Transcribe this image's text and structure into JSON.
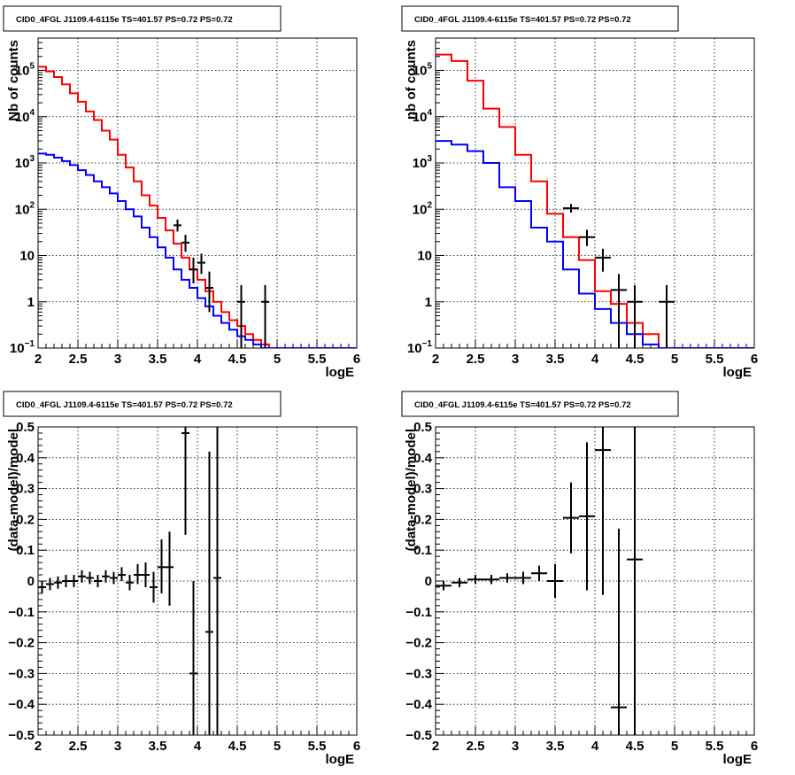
{
  "chart_data": [
    {
      "type": "line",
      "title": "CID0_4FGL J1109.4-6115e TS=401.57 PS=0.72 PS=0.72",
      "xlabel": "logE",
      "ylabel": "Nb of counts",
      "xlim": [
        2,
        6
      ],
      "ylim": [
        0.1,
        500000
      ],
      "yscale": "log",
      "grid": true,
      "x_ticks": [
        "2",
        "2.5",
        "3",
        "3.5",
        "4",
        "4.5",
        "5",
        "5.5",
        "6"
      ],
      "y_ticks": [
        {
          "base": "10",
          "exp": "−1"
        },
        {
          "base": "1",
          "exp": ""
        },
        {
          "base": "10",
          "exp": ""
        },
        {
          "base": "10",
          "exp": "2"
        },
        {
          "base": "10",
          "exp": "3"
        },
        {
          "base": "10",
          "exp": "4"
        },
        {
          "base": "10",
          "exp": "5"
        }
      ],
      "bin_edges": [
        2.0,
        2.1,
        2.2,
        2.3,
        2.4,
        2.5,
        2.6,
        2.7,
        2.8,
        2.9,
        3.0,
        3.1,
        3.2,
        3.3,
        3.4,
        3.5,
        3.6,
        3.7,
        3.8,
        3.9,
        4.0,
        4.1,
        4.2,
        4.3,
        4.4,
        4.5,
        4.6,
        4.7,
        4.8,
        4.9,
        5.0,
        5.1,
        5.2,
        5.3,
        5.4,
        5.5,
        5.6,
        5.7,
        5.8,
        5.9,
        6.0
      ],
      "series": [
        {
          "color": "#ff0000",
          "style": "step",
          "values": [
            120000,
            95000,
            72000,
            50000,
            32000,
            21000,
            13000,
            8500,
            5000,
            3200,
            1500,
            800,
            400,
            200,
            120,
            65,
            35,
            18,
            9,
            5,
            3,
            1.7,
            1.0,
            0.6,
            0.4,
            0.3,
            0.2,
            0.15,
            0.12,
            0.1,
            0.1,
            0.1,
            0.1,
            0.1,
            0.1,
            0.1,
            0.1,
            0.1,
            0.1,
            0.1
          ]
        },
        {
          "color": "#0000ff",
          "style": "step",
          "values": [
            1600,
            1500,
            1300,
            1100,
            900,
            700,
            550,
            400,
            300,
            220,
            150,
            100,
            70,
            40,
            25,
            15,
            9,
            5,
            3,
            2,
            1.2,
            0.8,
            0.5,
            0.35,
            0.25,
            0.18,
            0.15,
            0.12,
            0.1,
            0.1,
            0.1,
            0.1,
            0.1,
            0.1,
            0.1,
            0.1,
            0.1,
            0.1,
            0.1,
            0.1
          ]
        },
        {
          "color": "#000000",
          "style": "errorbar",
          "points": [
            {
              "x": 3.75,
              "xerr": 0.05,
              "y": 45,
              "ylo": 33,
              "yhi": 60
            },
            {
              "x": 3.85,
              "xerr": 0.05,
              "y": 19,
              "ylo": 12,
              "yhi": 28
            },
            {
              "x": 3.95,
              "xerr": 0.05,
              "y": 5,
              "ylo": 2.5,
              "yhi": 9
            },
            {
              "x": 4.05,
              "xerr": 0.05,
              "y": 7,
              "ylo": 4,
              "yhi": 11
            },
            {
              "x": 4.15,
              "xerr": 0.05,
              "y": 2,
              "ylo": 0.6,
              "yhi": 4.5
            },
            {
              "x": 4.55,
              "xerr": 0.05,
              "y": 1,
              "ylo": 0.1,
              "yhi": 2.3
            },
            {
              "x": 4.85,
              "xerr": 0.05,
              "y": 1,
              "ylo": 0.1,
              "yhi": 2.3
            }
          ]
        }
      ]
    },
    {
      "type": "line",
      "title": "CID0_4FGL J1109.4-6115e TS=401.57 PS=0.72 PS=0.72",
      "xlabel": "logE",
      "ylabel": "nb of counts",
      "xlim": [
        2,
        6
      ],
      "ylim": [
        0.1,
        500000
      ],
      "yscale": "log",
      "grid": true,
      "x_ticks": [
        "2",
        "2.5",
        "3",
        "3.5",
        "4",
        "4.5",
        "5",
        "5.5",
        "6"
      ],
      "y_ticks": [
        {
          "base": "10",
          "exp": "−1"
        },
        {
          "base": "1",
          "exp": ""
        },
        {
          "base": "10",
          "exp": ""
        },
        {
          "base": "10",
          "exp": "2"
        },
        {
          "base": "10",
          "exp": "3"
        },
        {
          "base": "10",
          "exp": "4"
        },
        {
          "base": "10",
          "exp": "5"
        }
      ],
      "bin_edges": [
        2.0,
        2.2,
        2.4,
        2.6,
        2.8,
        3.0,
        3.2,
        3.4,
        3.6,
        3.8,
        4.0,
        4.2,
        4.4,
        4.6,
        4.8,
        5.0,
        5.2,
        5.4,
        5.6,
        5.8,
        6.0
      ],
      "series": [
        {
          "color": "#ff0000",
          "style": "step",
          "values": [
            220000,
            160000,
            60000,
            15000,
            6000,
            1500,
            400,
            80,
            25,
            8,
            1.7,
            0.9,
            0.35,
            0.2,
            0.1,
            0.1,
            0.1,
            0.1,
            0.1,
            0.1
          ]
        },
        {
          "color": "#0000ff",
          "style": "step",
          "values": [
            3000,
            2500,
            1800,
            1000,
            300,
            150,
            40,
            20,
            5,
            1.5,
            0.7,
            0.35,
            0.2,
            0.12,
            0.1,
            0.1,
            0.1,
            0.1,
            0.1,
            0.1
          ]
        },
        {
          "color": "#000000",
          "style": "errorbar",
          "points": [
            {
              "x": 3.7,
              "xerr": 0.1,
              "y": 105,
              "ylo": 85,
              "yhi": 130
            },
            {
              "x": 3.9,
              "xerr": 0.1,
              "y": 25,
              "ylo": 16,
              "yhi": 36
            },
            {
              "x": 4.1,
              "xerr": 0.1,
              "y": 9,
              "ylo": 4.5,
              "yhi": 14
            },
            {
              "x": 4.3,
              "xerr": 0.1,
              "y": 1.8,
              "ylo": 0.1,
              "yhi": 4
            },
            {
              "x": 4.5,
              "xerr": 0.1,
              "y": 1,
              "ylo": 0.1,
              "yhi": 2.3
            },
            {
              "x": 4.9,
              "xerr": 0.1,
              "y": 1,
              "ylo": 0.1,
              "yhi": 2.3
            }
          ]
        }
      ]
    },
    {
      "type": "scatter",
      "title": "CID0_4FGL J1109.4-6115e TS=401.57 PS=0.72 PS=0.72",
      "xlabel": "logE",
      "ylabel": "(data-model)/model",
      "xlim": [
        2,
        6
      ],
      "ylim": [
        -0.5,
        0.5
      ],
      "grid": true,
      "x_ticks": [
        "2",
        "2.5",
        "3",
        "3.5",
        "4",
        "4.5",
        "5",
        "5.5",
        "6"
      ],
      "y_ticks": [
        "−0.5",
        "−0.4",
        "−0.3",
        "−0.2",
        "−0.1",
        "0",
        "0.1",
        "0.2",
        "0.3",
        "0.4",
        "0.5"
      ],
      "series": [
        {
          "color": "#000000",
          "style": "errorbar",
          "points": [
            {
              "x": 2.05,
              "xerr": 0.05,
              "y": -0.02,
              "ylo": -0.04,
              "yhi": 0.0
            },
            {
              "x": 2.15,
              "xerr": 0.05,
              "y": -0.01,
              "ylo": -0.03,
              "yhi": 0.01
            },
            {
              "x": 2.25,
              "xerr": 0.05,
              "y": -0.005,
              "ylo": -0.025,
              "yhi": 0.015
            },
            {
              "x": 2.35,
              "xerr": 0.05,
              "y": 0.0,
              "ylo": -0.02,
              "yhi": 0.02
            },
            {
              "x": 2.45,
              "xerr": 0.05,
              "y": 0.0,
              "ylo": -0.02,
              "yhi": 0.02
            },
            {
              "x": 2.55,
              "xerr": 0.05,
              "y": 0.015,
              "ylo": -0.005,
              "yhi": 0.035
            },
            {
              "x": 2.65,
              "xerr": 0.05,
              "y": 0.01,
              "ylo": -0.01,
              "yhi": 0.03
            },
            {
              "x": 2.75,
              "xerr": 0.05,
              "y": 0.0,
              "ylo": -0.02,
              "yhi": 0.02
            },
            {
              "x": 2.85,
              "xerr": 0.05,
              "y": 0.015,
              "ylo": -0.005,
              "yhi": 0.035
            },
            {
              "x": 2.95,
              "xerr": 0.05,
              "y": 0.01,
              "ylo": -0.01,
              "yhi": 0.03
            },
            {
              "x": 3.05,
              "xerr": 0.05,
              "y": 0.02,
              "ylo": 0.0,
              "yhi": 0.045
            },
            {
              "x": 3.15,
              "xerr": 0.05,
              "y": -0.005,
              "ylo": -0.03,
              "yhi": 0.02
            },
            {
              "x": 3.25,
              "xerr": 0.05,
              "y": 0.02,
              "ylo": -0.01,
              "yhi": 0.055
            },
            {
              "x": 3.35,
              "xerr": 0.05,
              "y": 0.02,
              "ylo": -0.02,
              "yhi": 0.06
            },
            {
              "x": 3.45,
              "xerr": 0.05,
              "y": -0.02,
              "ylo": -0.07,
              "yhi": 0.03
            },
            {
              "x": 3.55,
              "xerr": 0.05,
              "y": 0.045,
              "ylo": -0.04,
              "yhi": 0.135
            },
            {
              "x": 3.65,
              "xerr": 0.05,
              "y": 0.045,
              "ylo": -0.08,
              "yhi": 0.16
            },
            {
              "x": 3.85,
              "xerr": 0.05,
              "y": 0.48,
              "ylo": 0.15,
              "yhi": 0.5
            },
            {
              "x": 3.95,
              "xerr": 0.05,
              "y": -0.3,
              "ylo": -0.5,
              "yhi": 0.0
            },
            {
              "x": 4.15,
              "xerr": 0.05,
              "y": -0.165,
              "ylo": -0.5,
              "yhi": 0.42
            },
            {
              "x": 4.25,
              "xerr": 0.05,
              "y": 0.01,
              "ylo": -0.5,
              "yhi": 0.5
            }
          ]
        }
      ]
    },
    {
      "type": "scatter",
      "title": "CID0_4FGL J1109.4-6115e TS=401.57 PS=0.72 PS=0.72",
      "xlabel": "logE",
      "ylabel": "(data-model)/model",
      "xlim": [
        2,
        6
      ],
      "ylim": [
        -0.5,
        0.5
      ],
      "grid": true,
      "x_ticks": [
        "2",
        "2.5",
        "3",
        "3.5",
        "4",
        "4.5",
        "5",
        "5.5",
        "6"
      ],
      "y_ticks": [
        "−0.5",
        "−0.4",
        "−0.3",
        "−0.2",
        "−0.1",
        "0",
        "0.1",
        "0.2",
        "0.3",
        "0.4",
        "0.5"
      ],
      "series": [
        {
          "color": "#000000",
          "style": "errorbar",
          "points": [
            {
              "x": 2.1,
              "xerr": 0.1,
              "y": -0.015,
              "ylo": -0.03,
              "yhi": 0.0
            },
            {
              "x": 2.3,
              "xerr": 0.1,
              "y": -0.005,
              "ylo": -0.02,
              "yhi": 0.01
            },
            {
              "x": 2.5,
              "xerr": 0.1,
              "y": 0.005,
              "ylo": -0.01,
              "yhi": 0.02
            },
            {
              "x": 2.7,
              "xerr": 0.1,
              "y": 0.005,
              "ylo": -0.01,
              "yhi": 0.02
            },
            {
              "x": 2.9,
              "xerr": 0.1,
              "y": 0.01,
              "ylo": -0.005,
              "yhi": 0.025
            },
            {
              "x": 3.1,
              "xerr": 0.1,
              "y": 0.01,
              "ylo": -0.01,
              "yhi": 0.03
            },
            {
              "x": 3.3,
              "xerr": 0.1,
              "y": 0.025,
              "ylo": 0.0,
              "yhi": 0.05
            },
            {
              "x": 3.5,
              "xerr": 0.1,
              "y": 0.0,
              "ylo": -0.055,
              "yhi": 0.055
            },
            {
              "x": 3.7,
              "xerr": 0.1,
              "y": 0.205,
              "ylo": 0.09,
              "yhi": 0.32
            },
            {
              "x": 3.9,
              "xerr": 0.1,
              "y": 0.21,
              "ylo": -0.03,
              "yhi": 0.45
            },
            {
              "x": 4.1,
              "xerr": 0.1,
              "y": 0.425,
              "ylo": -0.045,
              "yhi": 0.5
            },
            {
              "x": 4.3,
              "xerr": 0.1,
              "y": -0.41,
              "ylo": -0.5,
              "yhi": 0.17
            },
            {
              "x": 4.5,
              "xerr": 0.1,
              "y": 0.07,
              "ylo": -0.5,
              "yhi": 0.5
            }
          ]
        }
      ]
    }
  ]
}
